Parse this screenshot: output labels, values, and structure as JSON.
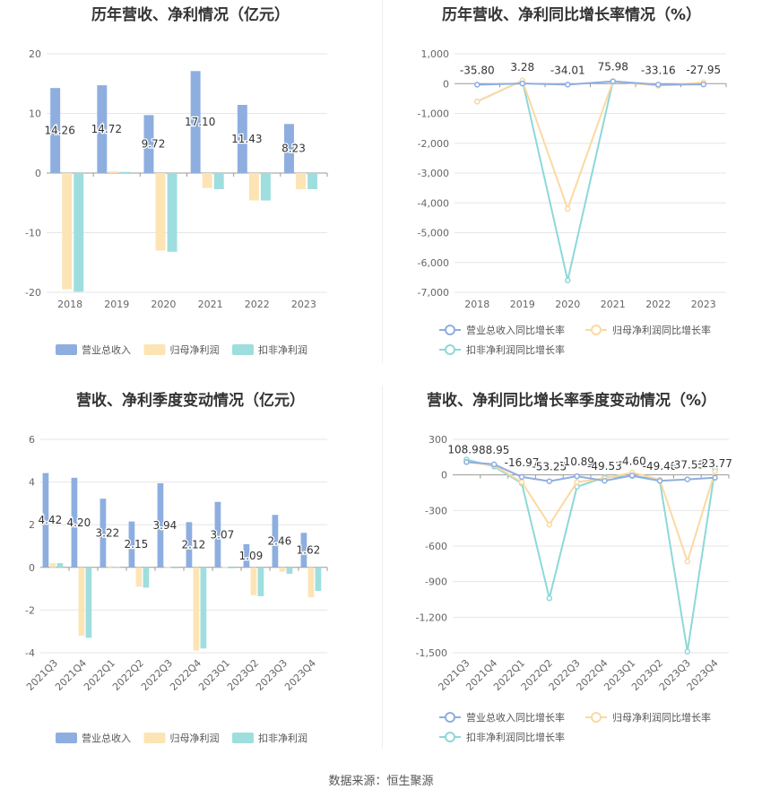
{
  "footer": {
    "label": "数据来源：",
    "source": "恒生聚源"
  },
  "colors": {
    "revenue": "#8eaee0",
    "netprofit": "#fde4b5",
    "deducted": "#9fdede",
    "line_revenue": "#8eaee0",
    "line_netprofit": "#fbd9a2",
    "line_deducted": "#8dd8d8"
  },
  "chart_data": [
    {
      "type": "bar",
      "title": "历年营收、净利情况（亿元）",
      "categories": [
        "2018",
        "2019",
        "2020",
        "2021",
        "2022",
        "2023"
      ],
      "series": [
        {
          "name": "营业总收入",
          "values": [
            14.26,
            14.72,
            9.72,
            17.1,
            11.43,
            8.23
          ]
        },
        {
          "name": "归母净利润",
          "values": [
            -19.5,
            0.3,
            -13.0,
            -2.5,
            -4.6,
            -2.7
          ]
        },
        {
          "name": "扣非净利润",
          "values": [
            -19.9,
            0.2,
            -13.2,
            -2.7,
            -4.6,
            -2.7
          ]
        }
      ],
      "labels": [
        "14.26",
        "14.72",
        "9.72",
        "17.10",
        "11.43",
        "8.23"
      ],
      "yticks": [
        "20",
        "10",
        "0",
        "-10",
        "-20"
      ],
      "ylim": [
        -20,
        20
      ],
      "legend": "bottom"
    },
    {
      "type": "line",
      "title": "历年营收、净利同比增长率情况（%）",
      "categories": [
        "2018",
        "2019",
        "2020",
        "2021",
        "2022",
        "2023"
      ],
      "series": [
        {
          "name": "营业总收入同比增长率",
          "values": [
            -35.8,
            3.28,
            -34.01,
            75.98,
            -33.16,
            -27.95
          ]
        },
        {
          "name": "归母净利润同比增长率",
          "values": [
            -600,
            100,
            -4200,
            80,
            -70,
            40
          ]
        },
        {
          "name": "扣非净利润同比增长率",
          "values": [
            -600,
            100,
            -6600,
            80,
            -60,
            0
          ]
        }
      ],
      "labels": [
        "-35.80",
        "3.28",
        "-34.01",
        "75.98",
        "-33.16",
        "-27.95"
      ],
      "yticks": [
        "1,000",
        "0",
        "-1,000",
        "-2,000",
        "-3,000",
        "-4,000",
        "-5,000",
        "-6,000",
        "-7,000"
      ],
      "ylim": [
        -7000,
        1000
      ],
      "legend": "bottom"
    },
    {
      "type": "bar",
      "title": "营收、净利季度变动情况（亿元）",
      "categories": [
        "2021Q3",
        "2021Q4",
        "2022Q1",
        "2022Q2",
        "2022Q3",
        "2022Q4",
        "2023Q1",
        "2023Q2",
        "2023Q3",
        "2023Q4"
      ],
      "series": [
        {
          "name": "营业总收入",
          "values": [
            4.42,
            4.2,
            3.22,
            2.15,
            3.94,
            2.12,
            3.07,
            1.09,
            2.46,
            1.62
          ]
        },
        {
          "name": "归母净利润",
          "values": [
            0.2,
            -3.2,
            0.05,
            -0.9,
            0.02,
            -3.9,
            0.03,
            -1.3,
            -0.2,
            -1.4
          ]
        },
        {
          "name": "扣非净利润",
          "values": [
            0.2,
            -3.3,
            0.03,
            -0.95,
            0.0,
            -3.8,
            0.0,
            -1.35,
            -0.3,
            -1.1
          ]
        }
      ],
      "labels": [
        "4.42",
        "4.20",
        "3.22",
        "2.15",
        "3.94",
        "2.12",
        "3.07",
        "1.09",
        "2.46",
        "1.62"
      ],
      "yticks": [
        "6",
        "4",
        "2",
        "0",
        "-2",
        "-4"
      ],
      "ylim": [
        -4,
        6
      ],
      "legend": "bottom"
    },
    {
      "type": "line",
      "title": "营收、净利同比增长率季度变动情况（%）",
      "categories": [
        "2021Q3",
        "2021Q4",
        "2022Q1",
        "2022Q2",
        "2022Q3",
        "2022Q4",
        "2023Q1",
        "2023Q2",
        "2023Q3",
        "2023Q4"
      ],
      "series": [
        {
          "name": "营业总收入同比增长率",
          "values": [
            108.9,
            88.95,
            -16.97,
            -53.25,
            -10.89,
            -49.53,
            -4.6,
            -49.48,
            -37.53,
            -23.77
          ]
        },
        {
          "name": "归母净利润同比增长率",
          "values": [
            110,
            80,
            -60,
            -420,
            -60,
            -30,
            20,
            -40,
            -730,
            30
          ]
        },
        {
          "name": "扣非净利润同比增长率",
          "values": [
            130,
            70,
            -70,
            -1040,
            -100,
            -20,
            -10,
            -50,
            -1490,
            50
          ]
        }
      ],
      "labels": [
        "108.90",
        "88.95",
        "-16.97",
        "-53.25",
        "-10.89",
        "-49.53",
        "-4.60",
        "-49.48",
        "-37.53",
        "-23.77"
      ],
      "yticks": [
        "300",
        "0",
        "-300",
        "-600",
        "-900",
        "-1,200",
        "-1,500"
      ],
      "ylim": [
        -1500,
        300
      ],
      "legend": "bottom"
    }
  ]
}
